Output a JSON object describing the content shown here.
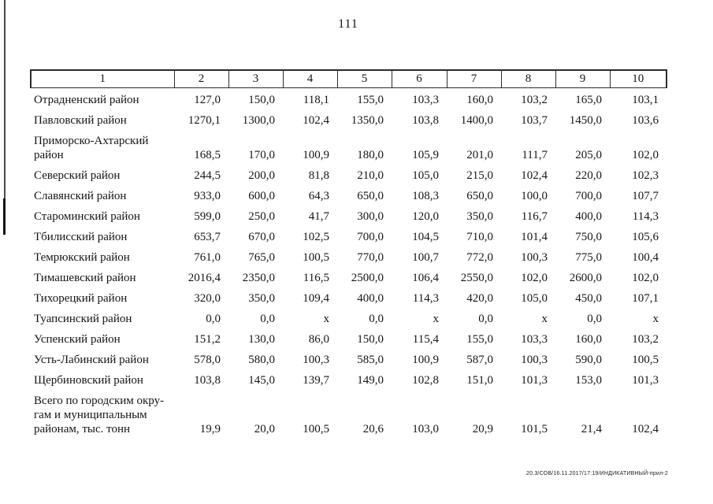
{
  "page": {
    "number": "111",
    "footer_stamp": "20.3/СОВ/16.11.2017/17:19/ИНДИКАТИВНЫЙ-прил-2"
  },
  "table": {
    "header": [
      "1",
      "2",
      "3",
      "4",
      "5",
      "6",
      "7",
      "8",
      "9",
      "10"
    ],
    "rows": [
      {
        "label": "Отрадненский район",
        "values": [
          "127,0",
          "150,0",
          "118,1",
          "155,0",
          "103,3",
          "160,0",
          "103,2",
          "165,0",
          "103,1"
        ]
      },
      {
        "label": "Павловский район",
        "values": [
          "1270,1",
          "1300,0",
          "102,4",
          "1350,0",
          "103,8",
          "1400,0",
          "103,7",
          "1450,0",
          "103,6"
        ]
      },
      {
        "label": "Приморско-Ахтарский\nрайон",
        "values": [
          "168,5",
          "170,0",
          "100,9",
          "180,0",
          "105,9",
          "201,0",
          "111,7",
          "205,0",
          "102,0"
        ]
      },
      {
        "label": "Северский район",
        "values": [
          "244,5",
          "200,0",
          "81,8",
          "210,0",
          "105,0",
          "215,0",
          "102,4",
          "220,0",
          "102,3"
        ]
      },
      {
        "label": "Славянский район",
        "values": [
          "933,0",
          "600,0",
          "64,3",
          "650,0",
          "108,3",
          "650,0",
          "100,0",
          "700,0",
          "107,7"
        ]
      },
      {
        "label": "Староминский район",
        "values": [
          "599,0",
          "250,0",
          "41,7",
          "300,0",
          "120,0",
          "350,0",
          "116,7",
          "400,0",
          "114,3"
        ]
      },
      {
        "label": "Тбилисский район",
        "values": [
          "653,7",
          "670,0",
          "102,5",
          "700,0",
          "104,5",
          "710,0",
          "101,4",
          "750,0",
          "105,6"
        ]
      },
      {
        "label": "Темрюкский район",
        "values": [
          "761,0",
          "765,0",
          "100,5",
          "770,0",
          "100,7",
          "772,0",
          "100,3",
          "775,0",
          "100,4"
        ]
      },
      {
        "label": "Тимашевский район",
        "values": [
          "2016,4",
          "2350,0",
          "116,5",
          "2500,0",
          "106,4",
          "2550,0",
          "102,0",
          "2600,0",
          "102,0"
        ]
      },
      {
        "label": "Тихорецкий район",
        "values": [
          "320,0",
          "350,0",
          "109,4",
          "400,0",
          "114,3",
          "420,0",
          "105,0",
          "450,0",
          "107,1"
        ]
      },
      {
        "label": "Туапсинский район",
        "values": [
          "0,0",
          "0,0",
          "х",
          "0,0",
          "х",
          "0,0",
          "х",
          "0,0",
          "х"
        ]
      },
      {
        "label": "Успенский район",
        "values": [
          "151,2",
          "130,0",
          "86,0",
          "150,0",
          "115,4",
          "155,0",
          "103,3",
          "160,0",
          "103,2"
        ]
      },
      {
        "label": "Усть-Лабинский район",
        "values": [
          "578,0",
          "580,0",
          "100,3",
          "585,0",
          "100,9",
          "587,0",
          "100,3",
          "590,0",
          "100,5"
        ]
      },
      {
        "label": "Щербиновский район",
        "values": [
          "103,8",
          "145,0",
          "139,7",
          "149,0",
          "102,8",
          "151,0",
          "101,3",
          "153,0",
          "101,3"
        ]
      },
      {
        "label": "Всего по городским окру-\nгам и муниципальным\nрайонам, тыс. тонн",
        "values": [
          "19,9",
          "20,0",
          "100,5",
          "20,6",
          "103,0",
          "20,9",
          "101,5",
          "21,4",
          "102,4"
        ]
      }
    ]
  }
}
